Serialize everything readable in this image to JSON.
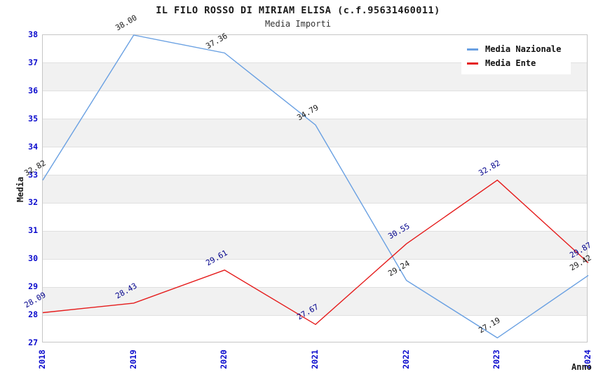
{
  "header": {
    "title": "IL FILO ROSSO DI MIRIAM ELISA (c.f.95631460011)",
    "subtitle": "Media Importi"
  },
  "chart_data": {
    "type": "line",
    "categories": [
      "2018",
      "2019",
      "2020",
      "2021",
      "2022",
      "2023",
      "2024"
    ],
    "series": [
      {
        "name": "Media Nazionale",
        "color": "#69a0e2",
        "label_color": "#1a1a1a",
        "values": [
          32.82,
          38.0,
          37.36,
          34.79,
          29.24,
          27.19,
          29.42
        ]
      },
      {
        "name": "Media Ente",
        "color": "#e51c1c",
        "label_color": "#00008b",
        "values": [
          28.09,
          28.43,
          29.61,
          27.67,
          30.55,
          32.82,
          29.87
        ]
      }
    ],
    "title": "IL FILO ROSSO DI MIRIAM ELISA (c.f.95631460011)",
    "subtitle": "Media Importi",
    "xlabel": "Anno",
    "ylabel": "Media",
    "ylim": [
      27,
      38
    ],
    "ytick_step": 1,
    "tick_label_color": "#0a0acd",
    "band_color": "#f1f1f1",
    "grid": "horizontal",
    "legend_position": "top-right",
    "point_label_decimals": 2
  }
}
